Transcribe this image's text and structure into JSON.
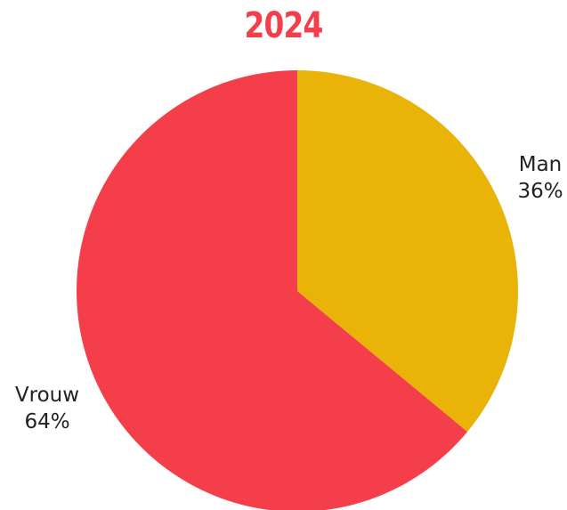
{
  "chart_data": {
    "type": "pie",
    "title": "2024",
    "slices": [
      {
        "label": "Man",
        "value": 36,
        "value_label": "36%",
        "color": "#EAB308"
      },
      {
        "label": "Vrouw",
        "value": 64,
        "value_label": "64%",
        "color": "#F43F4A"
      }
    ],
    "start_angle": "12 o'clock",
    "direction": "clockwise",
    "legend": "none",
    "title_color": "#F43F4A"
  }
}
